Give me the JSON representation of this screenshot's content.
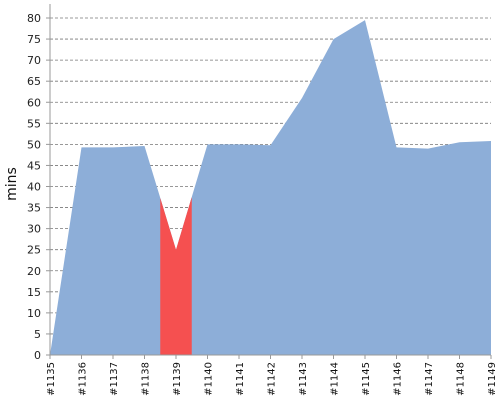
{
  "chart_data": {
    "type": "area",
    "title": "",
    "xlabel": "",
    "ylabel": "mins",
    "ylim": [
      0,
      80
    ],
    "yticks": [
      0,
      5,
      10,
      15,
      20,
      25,
      30,
      35,
      40,
      45,
      50,
      55,
      60,
      65,
      70,
      75,
      80
    ],
    "grid": "horizontal-dashed",
    "categories": [
      "#1135",
      "#1136",
      "#1137",
      "#1138",
      "#1139",
      "#1140",
      "#1141",
      "#1142",
      "#1143",
      "#1144",
      "#1145",
      "#1146",
      "#1147",
      "#1148",
      "#1149"
    ],
    "values": [
      0,
      49.3,
      49.3,
      49.6,
      25,
      50,
      50,
      49.8,
      61,
      75,
      79.5,
      49.3,
      49,
      50.5,
      50.8
    ],
    "colors": {
      "normal": "#8daed8",
      "highlight": "#f55050",
      "grid": "#777777",
      "axis": "#999999"
    },
    "highlighted_category": "#1139"
  }
}
